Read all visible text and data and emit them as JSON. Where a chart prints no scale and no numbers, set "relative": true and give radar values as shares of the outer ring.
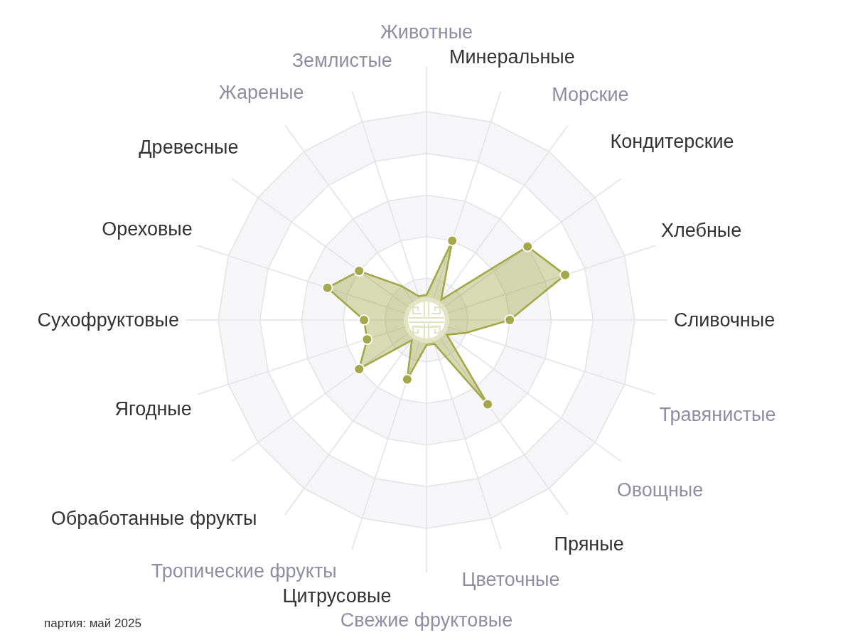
{
  "chart_data": {
    "type": "radar",
    "categories": [
      "Животные",
      "Минеральные",
      "Морские",
      "Кондитерские",
      "Хлебные",
      "Сливочные",
      "Травянистые",
      "Овощные",
      "Пряные",
      "Цветочные",
      "Свежие фруктовые",
      "Цитрусовые",
      "Тропические фрукты",
      "Обработанные фрукты",
      "Ягодные",
      "Сухофруктовые",
      "Ореховые",
      "Древесные",
      "Жареные",
      "Землистые"
    ],
    "series": [
      {
        "color": "#a3a84a",
        "values": [
          0.12,
          0.4,
          0.12,
          0.6,
          0.7,
          0.4,
          0.2,
          0.12,
          0.5,
          0.12,
          0.12,
          0.3,
          0.12,
          0.4,
          0.3,
          0.3,
          0.5,
          0.4,
          0.2,
          0.12
        ]
      }
    ],
    "relative": true,
    "grid": true,
    "marker": "circle",
    "annotations": [
      "партия: май 2025"
    ]
  }
}
